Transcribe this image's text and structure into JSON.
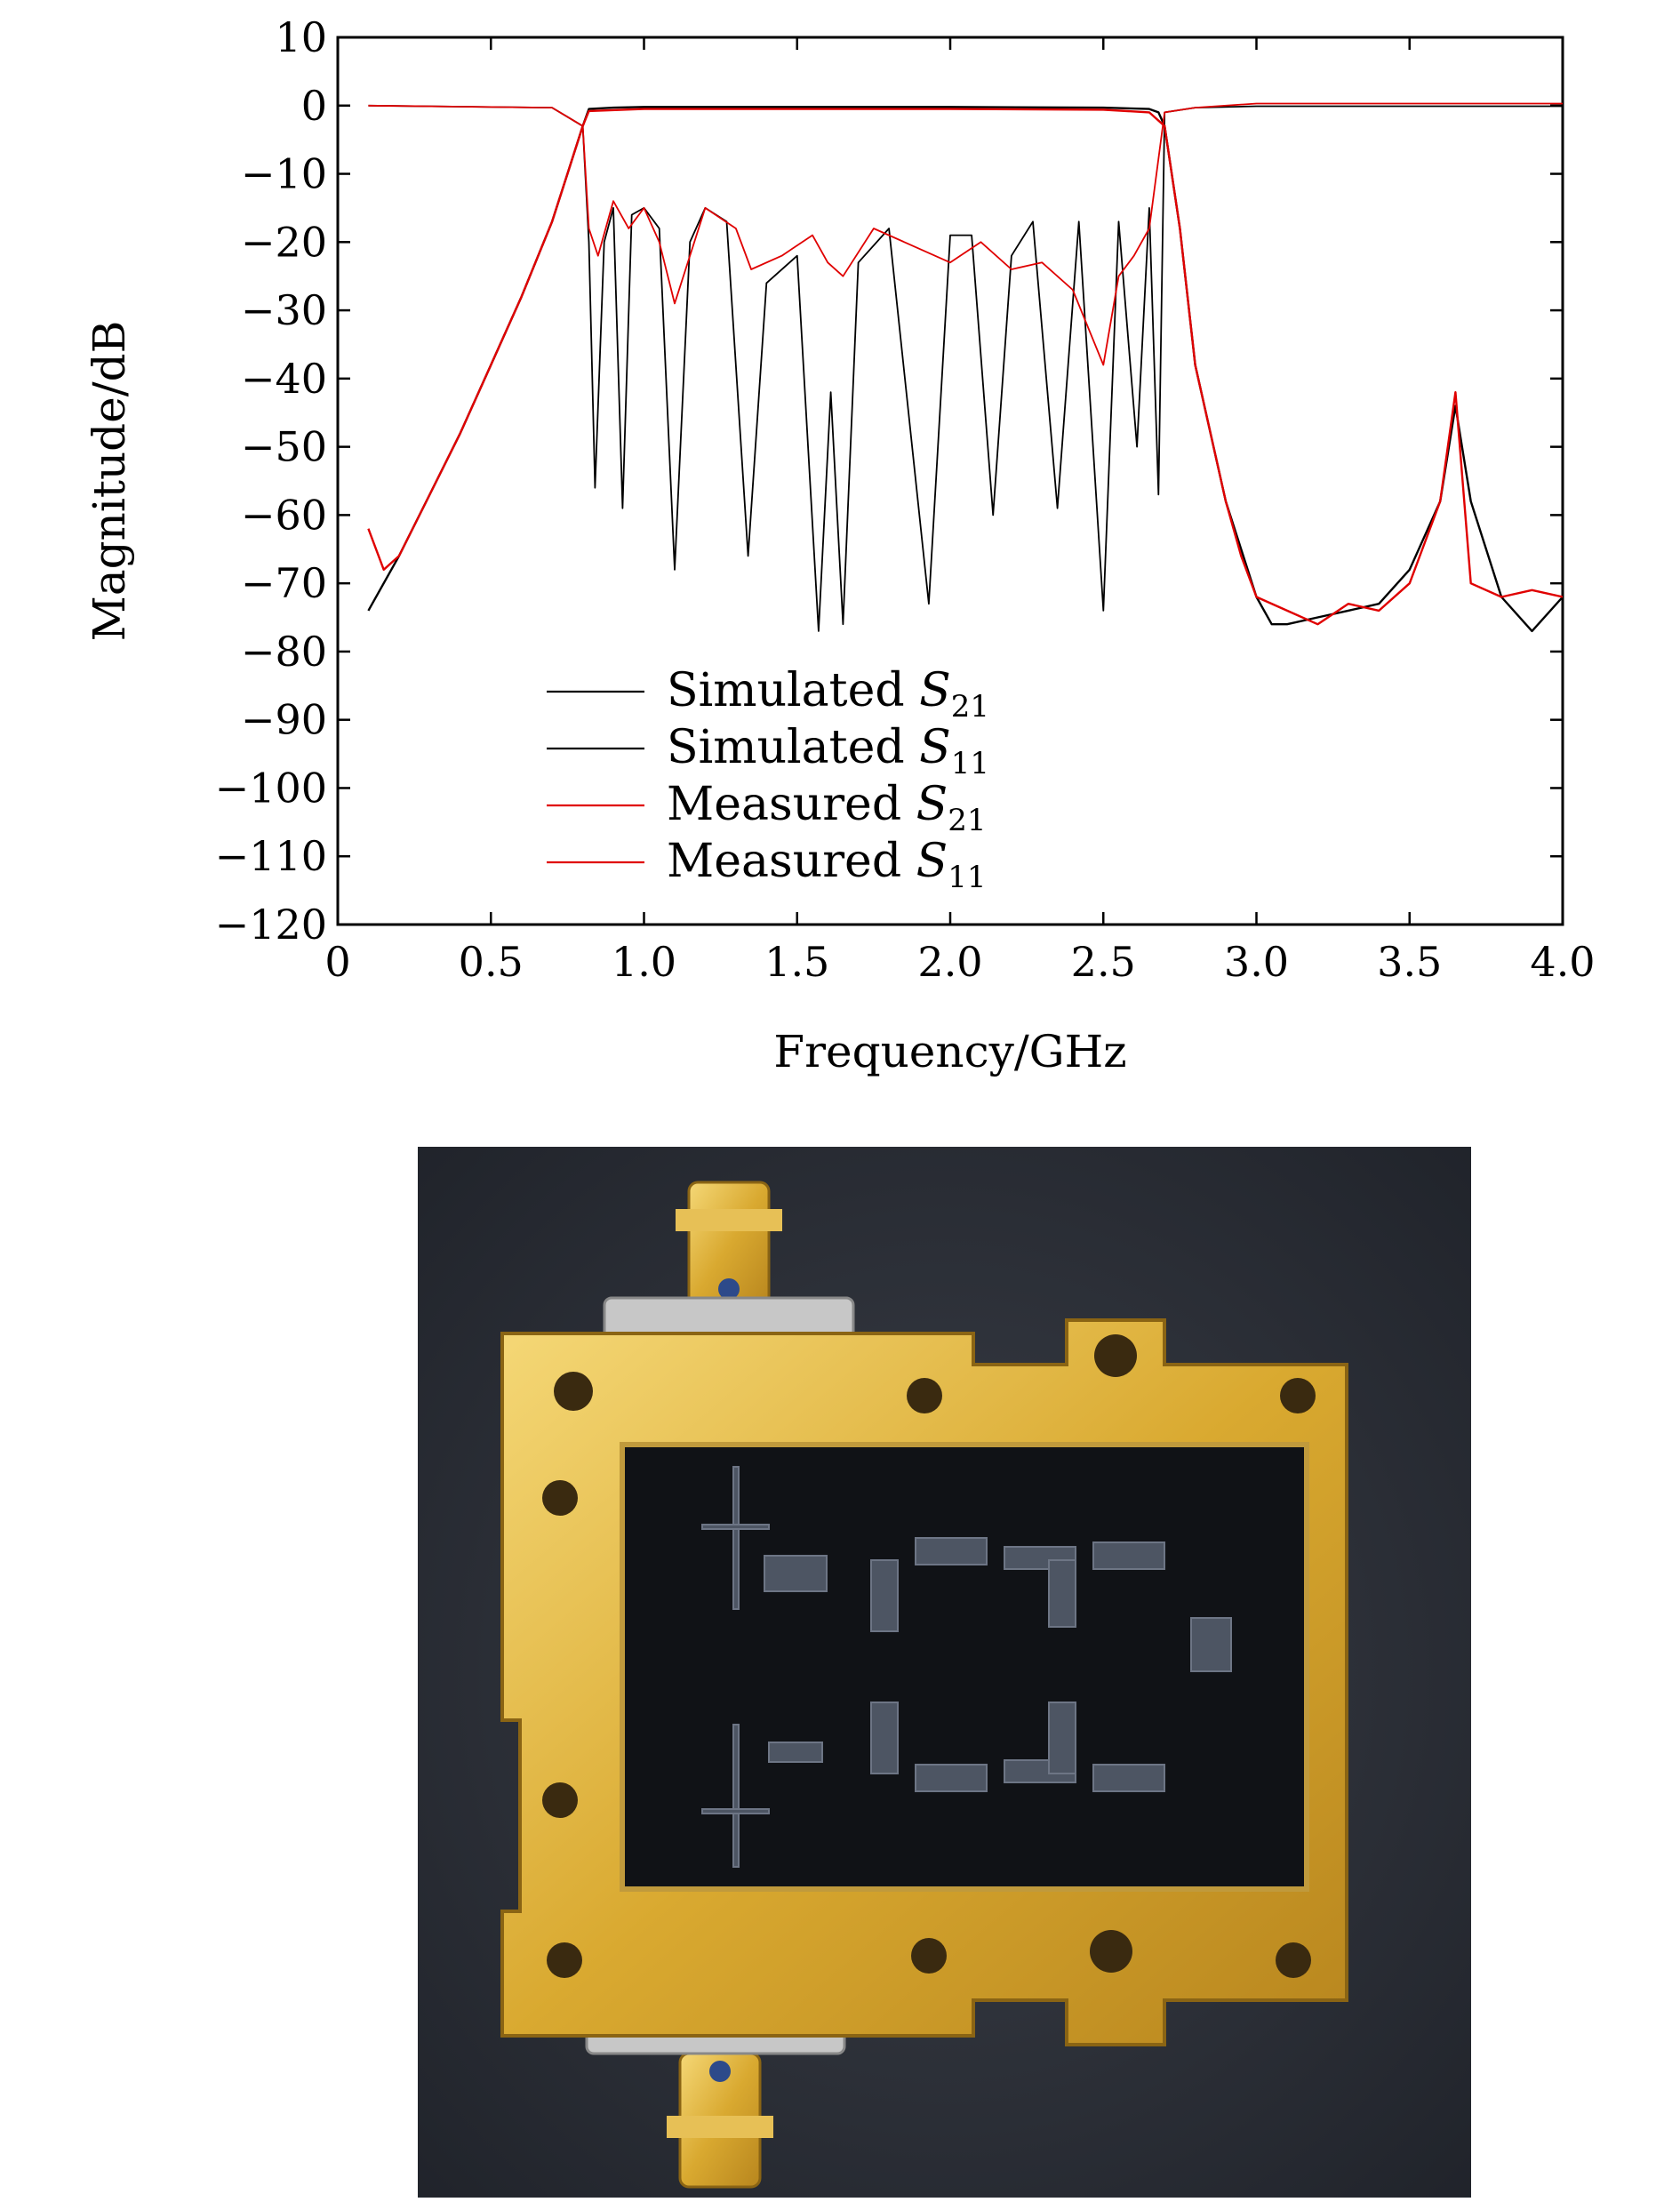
{
  "chart_data": {
    "type": "line",
    "title": "",
    "xlabel": "Frequency/GHz",
    "ylabel": "Magnitude/dB",
    "xlim": [
      0,
      4.0
    ],
    "ylim": [
      -120,
      10
    ],
    "x_ticks": [
      "0",
      "0.5",
      "1.0",
      "1.5",
      "2.0",
      "2.5",
      "3.0",
      "3.5",
      "4.0"
    ],
    "y_ticks": [
      "10",
      "0",
      "−10",
      "−20",
      "−30",
      "−40",
      "−50",
      "−60",
      "−70",
      "−80",
      "−90",
      "−100",
      "−110",
      "−120"
    ],
    "legend_position": "lower-left",
    "grid": false,
    "series": [
      {
        "name": "Simulated S21",
        "label_main": "Simulated ",
        "label_var": "S",
        "label_sub": "21",
        "color": "#000000",
        "x": [
          0.1,
          0.2,
          0.3,
          0.4,
          0.5,
          0.6,
          0.7,
          0.75,
          0.8,
          0.82,
          0.9,
          1.0,
          1.5,
          2.0,
          2.5,
          2.65,
          2.68,
          2.7,
          2.75,
          2.8,
          2.9,
          3.0,
          3.05,
          3.1,
          3.2,
          3.3,
          3.4,
          3.5,
          3.6,
          3.65,
          3.7,
          3.8,
          3.9,
          4.0
        ],
        "y": [
          -74,
          -66,
          -57,
          -48,
          -38,
          -28,
          -17,
          -10,
          -3,
          -0.5,
          -0.3,
          -0.2,
          -0.2,
          -0.2,
          -0.3,
          -0.5,
          -1,
          -3,
          -18,
          -38,
          -58,
          -72,
          -76,
          -76,
          -75,
          -74,
          -73,
          -68,
          -58,
          -44,
          -58,
          -72,
          -77,
          -72
        ]
      },
      {
        "name": "Simulated S11",
        "label_main": "Simulated ",
        "label_var": "S",
        "label_sub": "11",
        "color": "#000000",
        "x": [
          0.1,
          0.7,
          0.8,
          0.82,
          0.84,
          0.87,
          0.9,
          0.93,
          0.96,
          1.0,
          1.05,
          1.1,
          1.15,
          1.2,
          1.27,
          1.34,
          1.4,
          1.5,
          1.57,
          1.61,
          1.65,
          1.7,
          1.8,
          1.93,
          2.0,
          2.07,
          2.14,
          2.2,
          2.27,
          2.35,
          2.42,
          2.5,
          2.55,
          2.61,
          2.65,
          2.68,
          2.7,
          2.8,
          3.0,
          3.5,
          4.0
        ],
        "y": [
          0,
          -0.3,
          -3,
          -20,
          -56,
          -20,
          -15,
          -59,
          -16,
          -15,
          -18,
          -68,
          -20,
          -15,
          -17,
          -66,
          -26,
          -22,
          -77,
          -42,
          -76,
          -23,
          -18,
          -73,
          -19,
          -19,
          -60,
          -22,
          -17,
          -59,
          -17,
          -74,
          -17,
          -50,
          -15,
          -57,
          -1,
          -0.3,
          -0.1,
          -0.1,
          -0.1
        ]
      },
      {
        "name": "Measured S21",
        "label_main": "Measured ",
        "label_var": "S",
        "label_sub": "21",
        "color": "#e00000",
        "x": [
          0.1,
          0.15,
          0.2,
          0.3,
          0.4,
          0.5,
          0.6,
          0.7,
          0.75,
          0.8,
          0.82,
          1.0,
          1.5,
          2.0,
          2.5,
          2.65,
          2.7,
          2.75,
          2.8,
          2.9,
          2.95,
          3.0,
          3.1,
          3.2,
          3.3,
          3.4,
          3.5,
          3.6,
          3.65,
          3.7,
          3.8,
          3.9,
          4.0
        ],
        "y": [
          -62,
          -68,
          -66,
          -57,
          -48,
          -38,
          -28,
          -17,
          -10,
          -3,
          -0.8,
          -0.5,
          -0.5,
          -0.5,
          -0.6,
          -1,
          -3,
          -18,
          -38,
          -58,
          -66,
          -72,
          -74,
          -76,
          -73,
          -74,
          -70,
          -58,
          -42,
          -70,
          -72,
          -71,
          -72
        ]
      },
      {
        "name": "Measured S11",
        "label_main": "Measured ",
        "label_var": "S",
        "label_sub": "11",
        "color": "#e00000",
        "x": [
          0.1,
          0.7,
          0.8,
          0.82,
          0.85,
          0.9,
          0.95,
          1.0,
          1.05,
          1.1,
          1.2,
          1.3,
          1.35,
          1.45,
          1.55,
          1.6,
          1.65,
          1.75,
          1.85,
          2.0,
          2.1,
          2.2,
          2.3,
          2.4,
          2.5,
          2.55,
          2.6,
          2.65,
          2.7,
          2.8,
          3.0,
          3.5,
          4.0
        ],
        "y": [
          0,
          -0.3,
          -3,
          -18,
          -22,
          -14,
          -18,
          -15,
          -20,
          -29,
          -15,
          -18,
          -24,
          -22,
          -19,
          -23,
          -25,
          -18,
          -20,
          -23,
          -20,
          -24,
          -23,
          -27,
          -38,
          -25,
          -22,
          -18,
          -1,
          -0.3,
          0.3,
          0.3,
          0.3
        ]
      }
    ]
  },
  "photo": {
    "subject": "filter-package-photo"
  }
}
